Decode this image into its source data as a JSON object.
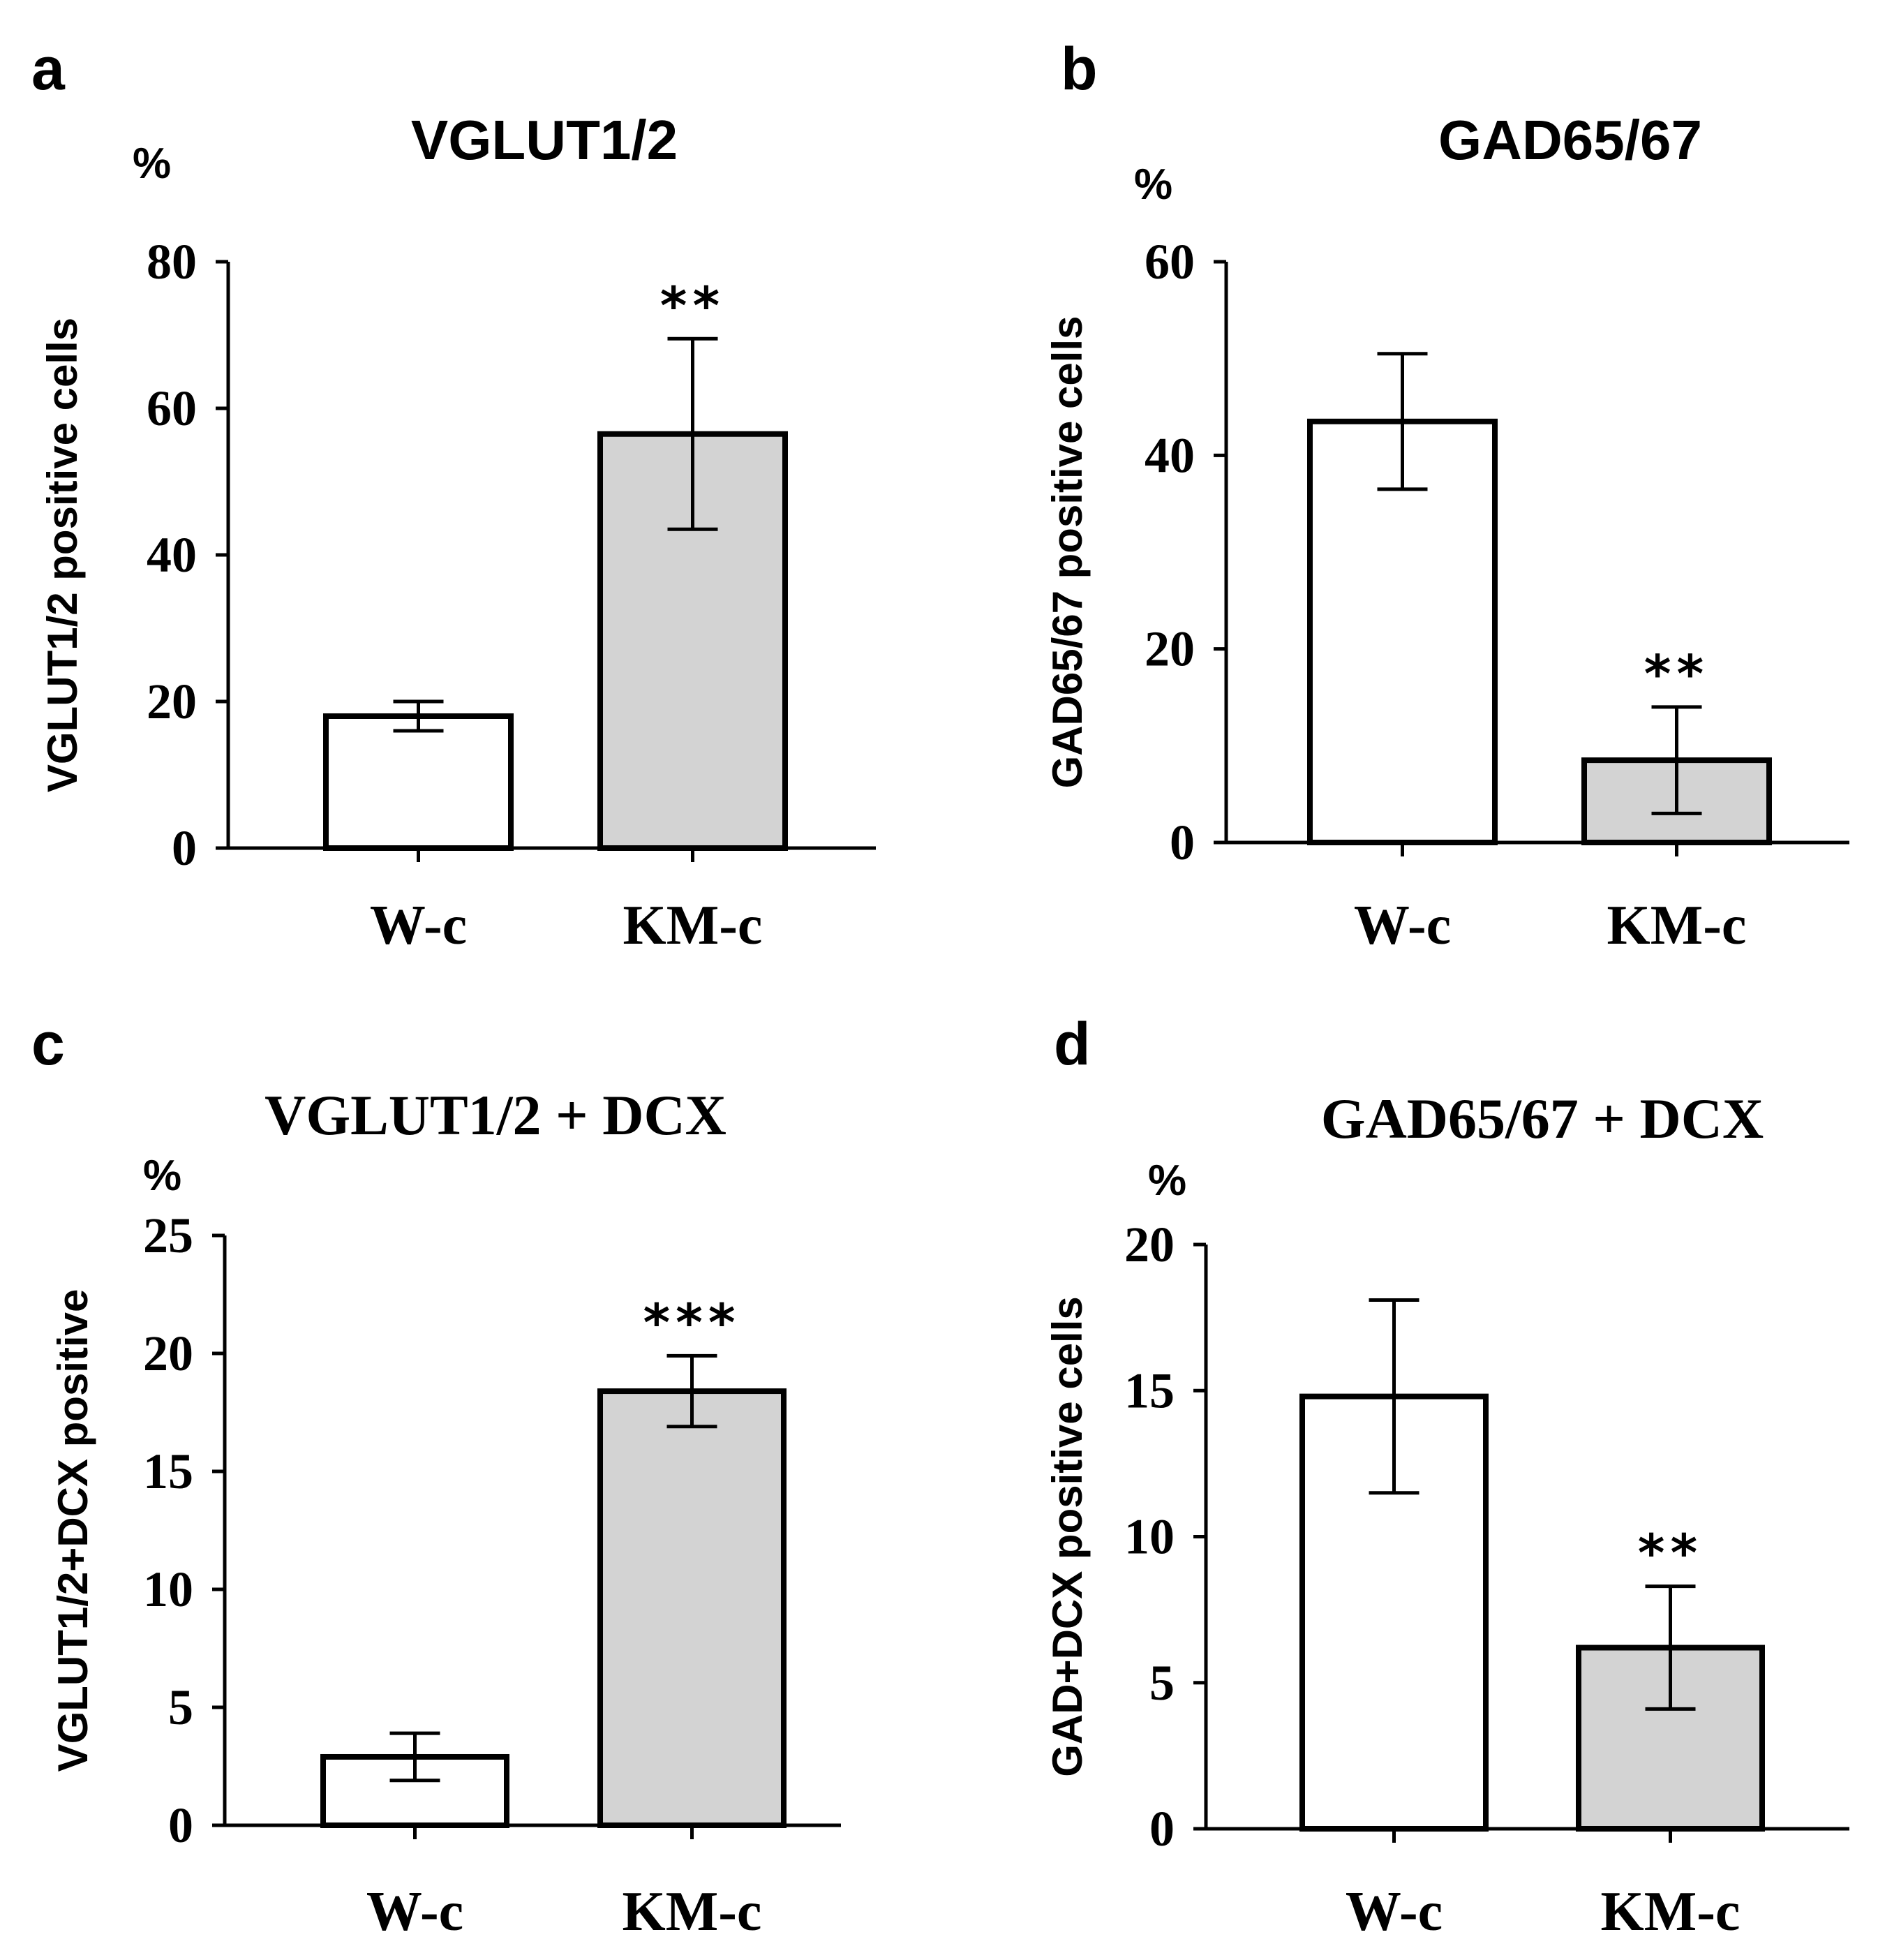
{
  "chart_data": [
    {
      "panel": "a",
      "type": "bar",
      "title": "VGLUT1/2",
      "unit": "%",
      "ylabel": "VGLUT1/2 positive cells",
      "categories": [
        "W-c",
        "KM-c"
      ],
      "values": [
        18,
        56.5
      ],
      "errors": [
        2,
        13
      ],
      "significance": [
        "",
        "**"
      ],
      "colors": [
        "#ffffff",
        "#d3d3d3"
      ],
      "ylim": [
        0,
        80
      ],
      "yticks": [
        0,
        20,
        40,
        60,
        80
      ]
    },
    {
      "panel": "b",
      "type": "bar",
      "title": "GAD65/67",
      "unit": "%",
      "ylabel": "GAD65/67 positive cells",
      "categories": [
        "W-c",
        "KM-c"
      ],
      "values": [
        43.5,
        8.5
      ],
      "errors": [
        7,
        5.5
      ],
      "significance": [
        "",
        "**"
      ],
      "colors": [
        "#ffffff",
        "#d3d3d3"
      ],
      "ylim": [
        0,
        60
      ],
      "yticks": [
        0,
        20,
        40,
        60
      ]
    },
    {
      "panel": "c",
      "type": "bar",
      "title": "VGLUT1/2 + DCX",
      "unit": "%",
      "ylabel": "VGLUT1/2+DCX positive",
      "categories": [
        "W-c",
        "KM-c"
      ],
      "values": [
        2.9,
        18.4
      ],
      "errors": [
        1,
        1.5
      ],
      "significance": [
        "",
        "***"
      ],
      "colors": [
        "#ffffff",
        "#d3d3d3"
      ],
      "ylim": [
        0,
        25
      ],
      "yticks": [
        0,
        5,
        10,
        15,
        20,
        25
      ]
    },
    {
      "panel": "d",
      "type": "bar",
      "title": "GAD65/67 + DCX",
      "unit": "%",
      "ylabel": "GAD+DCX positive cells",
      "categories": [
        "W-c",
        "KM-c"
      ],
      "values": [
        14.8,
        6.2
      ],
      "errors": [
        3.3,
        2.1
      ],
      "significance": [
        "",
        "**"
      ],
      "colors": [
        "#ffffff",
        "#d3d3d3"
      ],
      "ylim": [
        0,
        20
      ],
      "yticks": [
        0,
        5,
        10,
        15,
        20
      ]
    }
  ]
}
